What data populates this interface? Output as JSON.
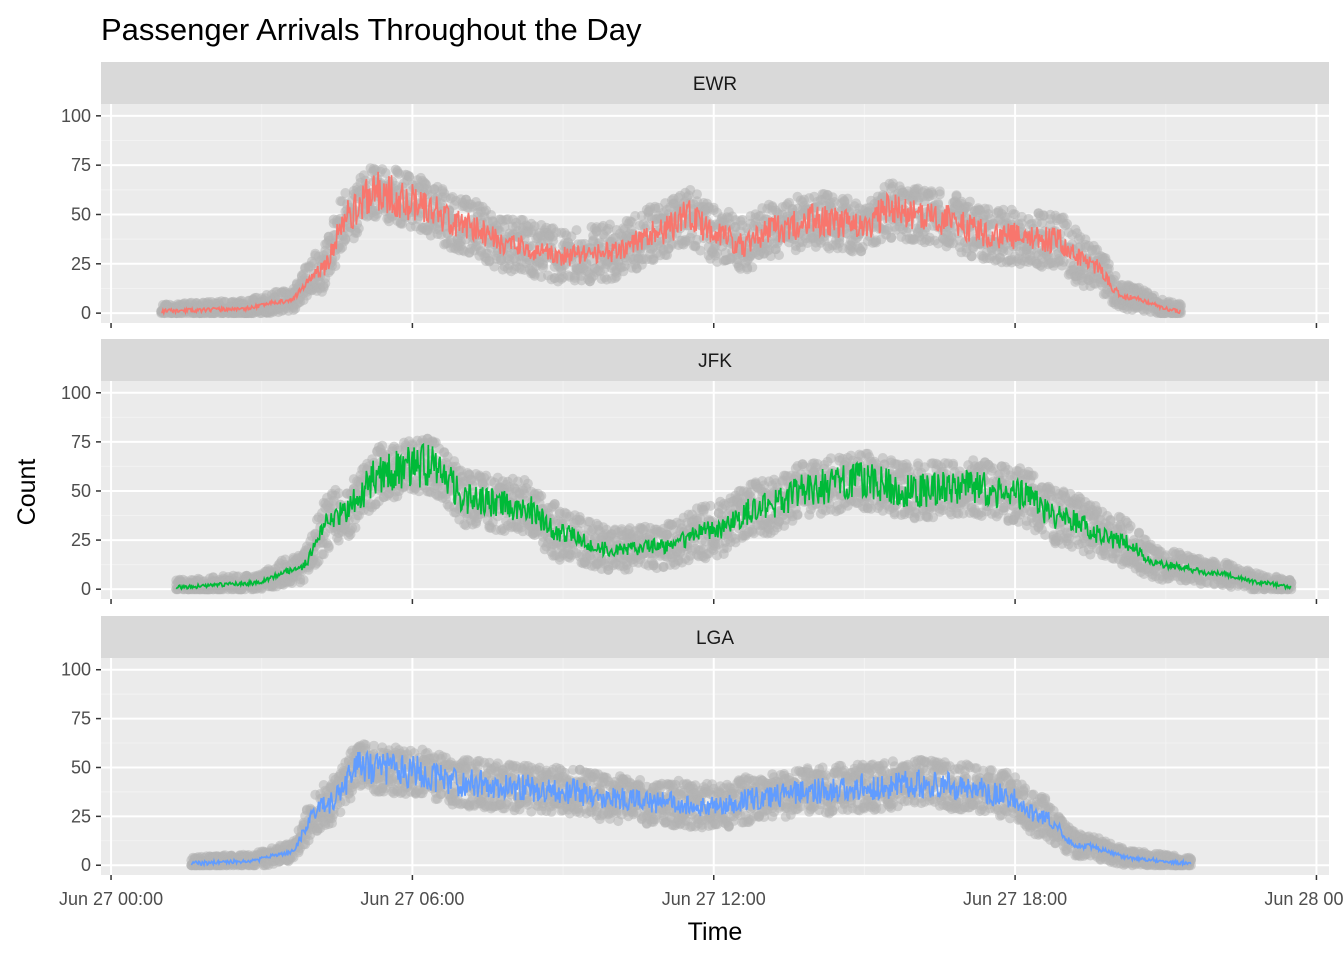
{
  "chart_data": {
    "type": "line",
    "title": "Passenger Arrivals Throughout the Day",
    "xlabel": "Time",
    "ylabel": "Count",
    "xlim_hours": [
      -0.2,
      24.25
    ],
    "ylim": [
      -5,
      106
    ],
    "y_ticks": [
      0,
      25,
      50,
      75,
      100
    ],
    "x_ticks": [
      {
        "hour": 0,
        "label": "Jun 27 00:00"
      },
      {
        "hour": 6,
        "label": "Jun 27 06:00"
      },
      {
        "hour": 12,
        "label": "Jun 27 12:00"
      },
      {
        "hour": 18,
        "label": "Jun 27 18:00"
      },
      {
        "hour": 24,
        "label": "Jun 28 00:00"
      }
    ],
    "x_minor_hours": [
      3,
      9,
      15,
      21
    ],
    "grid": true,
    "legend": "none",
    "points_color": "#b3b3b3",
    "panel_background": "#ebebeb",
    "strip_background": "#d9d9d9",
    "facets": [
      {
        "name": "EWR",
        "color": "#f8766d",
        "start_hour": 1.0,
        "end_hour": 21.3,
        "profile": [
          [
            1.0,
            1
          ],
          [
            2.5,
            2
          ],
          [
            3.5,
            6
          ],
          [
            4.2,
            22
          ],
          [
            4.7,
            50
          ],
          [
            5.3,
            62
          ],
          [
            6.0,
            56
          ],
          [
            7.0,
            45
          ],
          [
            8.0,
            34
          ],
          [
            9.0,
            29
          ],
          [
            10.0,
            31
          ],
          [
            11.0,
            42
          ],
          [
            11.5,
            49
          ],
          [
            12.0,
            40
          ],
          [
            12.6,
            35
          ],
          [
            13.3,
            43
          ],
          [
            14.0,
            47
          ],
          [
            15.0,
            44
          ],
          [
            15.5,
            52
          ],
          [
            16.5,
            48
          ],
          [
            17.5,
            40
          ],
          [
            18.8,
            37
          ],
          [
            19.5,
            25
          ],
          [
            20.2,
            8
          ],
          [
            21.3,
            1
          ]
        ],
        "spread": 14,
        "seed": 11
      },
      {
        "name": "JFK",
        "color": "#00ba38",
        "start_hour": 1.3,
        "end_hour": 23.5,
        "profile": [
          [
            1.3,
            1
          ],
          [
            2.8,
            3
          ],
          [
            3.7,
            10
          ],
          [
            4.5,
            38
          ],
          [
            5.5,
            60
          ],
          [
            6.3,
            63
          ],
          [
            7.2,
            45
          ],
          [
            8.2,
            42
          ],
          [
            9.0,
            28
          ],
          [
            10.0,
            20
          ],
          [
            11.0,
            22
          ],
          [
            12.0,
            30
          ],
          [
            13.0,
            42
          ],
          [
            14.0,
            52
          ],
          [
            15.0,
            55
          ],
          [
            16.0,
            50
          ],
          [
            17.0,
            52
          ],
          [
            18.0,
            48
          ],
          [
            19.0,
            36
          ],
          [
            20.0,
            25
          ],
          [
            21.0,
            12
          ],
          [
            22.0,
            8
          ],
          [
            23.0,
            3
          ],
          [
            23.5,
            1
          ]
        ],
        "spread": 14,
        "seed": 23
      },
      {
        "name": "LGA",
        "color": "#619cff",
        "start_hour": 1.6,
        "end_hour": 21.5,
        "profile": [
          [
            1.6,
            1
          ],
          [
            2.7,
            2
          ],
          [
            3.5,
            6
          ],
          [
            4.2,
            30
          ],
          [
            5.0,
            50
          ],
          [
            6.0,
            48
          ],
          [
            7.0,
            42
          ],
          [
            8.0,
            40
          ],
          [
            9.0,
            38
          ],
          [
            10.0,
            34
          ],
          [
            11.0,
            32
          ],
          [
            12.0,
            30
          ],
          [
            13.0,
            35
          ],
          [
            14.0,
            38
          ],
          [
            15.0,
            40
          ],
          [
            16.0,
            42
          ],
          [
            17.0,
            40
          ],
          [
            17.8,
            36
          ],
          [
            18.5,
            25
          ],
          [
            19.3,
            10
          ],
          [
            20.5,
            3
          ],
          [
            21.5,
            1
          ]
        ],
        "spread": 12,
        "seed": 37
      }
    ]
  }
}
